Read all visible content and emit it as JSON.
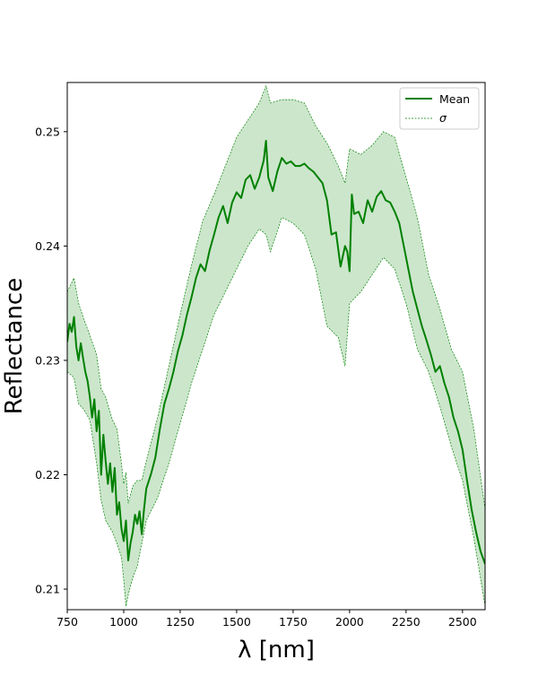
{
  "chart_data": {
    "type": "line",
    "xlabel": "λ [nm]",
    "ylabel": "Reflectance",
    "xlim": [
      750,
      2600
    ],
    "ylim": [
      0.2082,
      0.2543
    ],
    "xticks": [
      750,
      1000,
      1250,
      1500,
      1750,
      2000,
      2250,
      2500
    ],
    "yticks": [
      0.21,
      0.22,
      0.23,
      0.24,
      0.25
    ],
    "ytick_labels": [
      "0.21",
      "0.22",
      "0.23",
      "0.24",
      "0.25"
    ],
    "grid": false,
    "legend_position": "top-right",
    "colors": {
      "mean": "#008000",
      "band_fill": "#cce6cc",
      "band_edge": "#008000"
    },
    "series": [
      {
        "name": "Mean",
        "style": "solid",
        "x": [
          750,
          760,
          770,
          780,
          790,
          800,
          810,
          820,
          830,
          840,
          850,
          860,
          870,
          880,
          890,
          900,
          910,
          920,
          930,
          940,
          950,
          960,
          970,
          980,
          990,
          1000,
          1010,
          1020,
          1030,
          1040,
          1050,
          1060,
          1070,
          1080,
          1090,
          1100,
          1120,
          1140,
          1160,
          1180,
          1200,
          1220,
          1240,
          1260,
          1280,
          1300,
          1320,
          1340,
          1360,
          1380,
          1400,
          1420,
          1440,
          1460,
          1480,
          1500,
          1520,
          1540,
          1560,
          1580,
          1600,
          1620,
          1630,
          1640,
          1660,
          1680,
          1700,
          1720,
          1740,
          1760,
          1780,
          1800,
          1820,
          1840,
          1860,
          1880,
          1900,
          1920,
          1940,
          1960,
          1980,
          1990,
          2000,
          2010,
          2020,
          2040,
          2060,
          2080,
          2100,
          2120,
          2140,
          2160,
          2180,
          2200,
          2220,
          2240,
          2260,
          2280,
          2300,
          2320,
          2340,
          2360,
          2380,
          2400,
          2420,
          2440,
          2460,
          2480,
          2500,
          2520,
          2540,
          2560,
          2580,
          2600
        ],
        "y": [
          0.2316,
          0.2332,
          0.2325,
          0.2338,
          0.2312,
          0.23,
          0.2315,
          0.2302,
          0.229,
          0.2282,
          0.2268,
          0.225,
          0.2266,
          0.2238,
          0.2256,
          0.22,
          0.2235,
          0.2212,
          0.2192,
          0.221,
          0.2185,
          0.2206,
          0.2165,
          0.2176,
          0.2153,
          0.2142,
          0.216,
          0.2125,
          0.214,
          0.215,
          0.2165,
          0.2157,
          0.2168,
          0.2148,
          0.217,
          0.2188,
          0.22,
          0.2215,
          0.224,
          0.2262,
          0.2275,
          0.229,
          0.2308,
          0.2322,
          0.234,
          0.2355,
          0.2372,
          0.2384,
          0.2378,
          0.2396,
          0.241,
          0.2425,
          0.2435,
          0.242,
          0.2438,
          0.2447,
          0.2442,
          0.2458,
          0.2462,
          0.245,
          0.246,
          0.2475,
          0.2492,
          0.246,
          0.2448,
          0.2465,
          0.2477,
          0.2472,
          0.2474,
          0.247,
          0.247,
          0.2472,
          0.2468,
          0.2465,
          0.246,
          0.2455,
          0.244,
          0.241,
          0.2412,
          0.2382,
          0.24,
          0.2395,
          0.2378,
          0.2445,
          0.2428,
          0.243,
          0.242,
          0.244,
          0.243,
          0.2443,
          0.2448,
          0.244,
          0.2438,
          0.243,
          0.242,
          0.24,
          0.238,
          0.236,
          0.2345,
          0.233,
          0.2318,
          0.2305,
          0.229,
          0.2295,
          0.228,
          0.2268,
          0.225,
          0.2238,
          0.2222,
          0.2195,
          0.217,
          0.215,
          0.2133,
          0.2122
        ]
      },
      {
        "name": "σ",
        "style": "dashed",
        "x": [
          750,
          780,
          800,
          820,
          850,
          880,
          900,
          920,
          950,
          970,
          990,
          1000,
          1010,
          1020,
          1040,
          1060,
          1080,
          1100,
          1150,
          1200,
          1250,
          1300,
          1350,
          1400,
          1450,
          1500,
          1550,
          1600,
          1630,
          1650,
          1700,
          1750,
          1800,
          1850,
          1900,
          1950,
          1980,
          2000,
          2050,
          2100,
          2150,
          2200,
          2250,
          2300,
          2350,
          2400,
          2450,
          2500,
          2550,
          2600
        ],
        "upper": [
          0.236,
          0.2372,
          0.235,
          0.2338,
          0.2322,
          0.2305,
          0.2275,
          0.2268,
          0.2248,
          0.224,
          0.221,
          0.2192,
          0.2202,
          0.2175,
          0.219,
          0.2195,
          0.2195,
          0.2212,
          0.225,
          0.2295,
          0.234,
          0.2383,
          0.2422,
          0.2445,
          0.247,
          0.2495,
          0.251,
          0.2525,
          0.254,
          0.2525,
          0.2528,
          0.2528,
          0.2525,
          0.2505,
          0.249,
          0.247,
          0.2455,
          0.2485,
          0.248,
          0.2488,
          0.25,
          0.2495,
          0.246,
          0.2425,
          0.2375,
          0.2345,
          0.231,
          0.229,
          0.224,
          0.217
        ],
        "lower": [
          0.229,
          0.2285,
          0.2262,
          0.2258,
          0.2248,
          0.221,
          0.2178,
          0.216,
          0.215,
          0.214,
          0.2128,
          0.2108,
          0.2085,
          0.2095,
          0.211,
          0.212,
          0.214,
          0.216,
          0.218,
          0.221,
          0.2245,
          0.228,
          0.231,
          0.234,
          0.236,
          0.238,
          0.24,
          0.2415,
          0.241,
          0.2395,
          0.2425,
          0.242,
          0.241,
          0.238,
          0.233,
          0.232,
          0.2295,
          0.235,
          0.236,
          0.2375,
          0.239,
          0.238,
          0.235,
          0.231,
          0.229,
          0.226,
          0.2225,
          0.2195,
          0.2145,
          0.2085
        ]
      }
    ]
  },
  "legend": {
    "mean_label": "Mean",
    "sigma_label": "σ"
  }
}
